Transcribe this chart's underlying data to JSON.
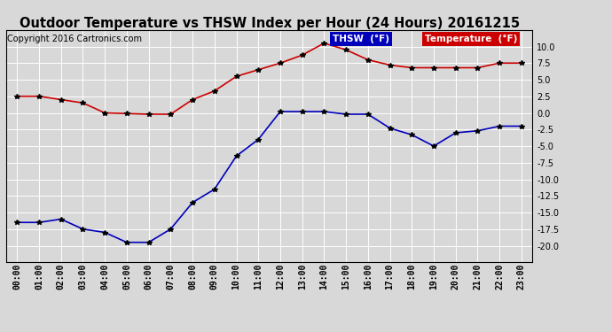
{
  "title": "Outdoor Temperature vs THSW Index per Hour (24 Hours) 20161215",
  "copyright": "Copyright 2016 Cartronics.com",
  "hours": [
    "00:00",
    "01:00",
    "02:00",
    "03:00",
    "04:00",
    "05:00",
    "06:00",
    "07:00",
    "08:00",
    "09:00",
    "10:00",
    "11:00",
    "12:00",
    "13:00",
    "14:00",
    "15:00",
    "16:00",
    "17:00",
    "18:00",
    "19:00",
    "20:00",
    "21:00",
    "22:00",
    "23:00"
  ],
  "temperature": [
    2.5,
    2.5,
    2.0,
    1.5,
    0.0,
    -0.1,
    -0.2,
    -0.2,
    2.0,
    3.3,
    5.5,
    6.5,
    7.5,
    8.7,
    10.5,
    9.5,
    8.0,
    7.2,
    6.8,
    6.8,
    6.8,
    6.8,
    7.5,
    7.5
  ],
  "thsw": [
    -16.5,
    -16.5,
    -16.0,
    -17.5,
    -18.0,
    -19.5,
    -19.5,
    -17.5,
    -13.5,
    -11.5,
    -6.5,
    -4.0,
    0.2,
    0.2,
    0.2,
    -0.2,
    -0.2,
    -2.3,
    -3.3,
    -5.0,
    -3.0,
    -2.7,
    -2.0,
    -2.0
  ],
  "ylim": [
    -22.5,
    12.5
  ],
  "yticks": [
    -20.0,
    -17.5,
    -15.0,
    -12.5,
    -10.0,
    -7.5,
    -5.0,
    -2.5,
    0.0,
    2.5,
    5.0,
    7.5,
    10.0
  ],
  "temp_color": "#cc0000",
  "thsw_color": "#0000bb",
  "bg_color": "#d8d8d8",
  "grid_color": "#ffffff",
  "legend_thsw_bg": "#0000bb",
  "legend_temp_bg": "#cc0000",
  "title_fontsize": 10.5,
  "copyright_fontsize": 7,
  "tick_fontsize": 7,
  "marker_size": 4
}
